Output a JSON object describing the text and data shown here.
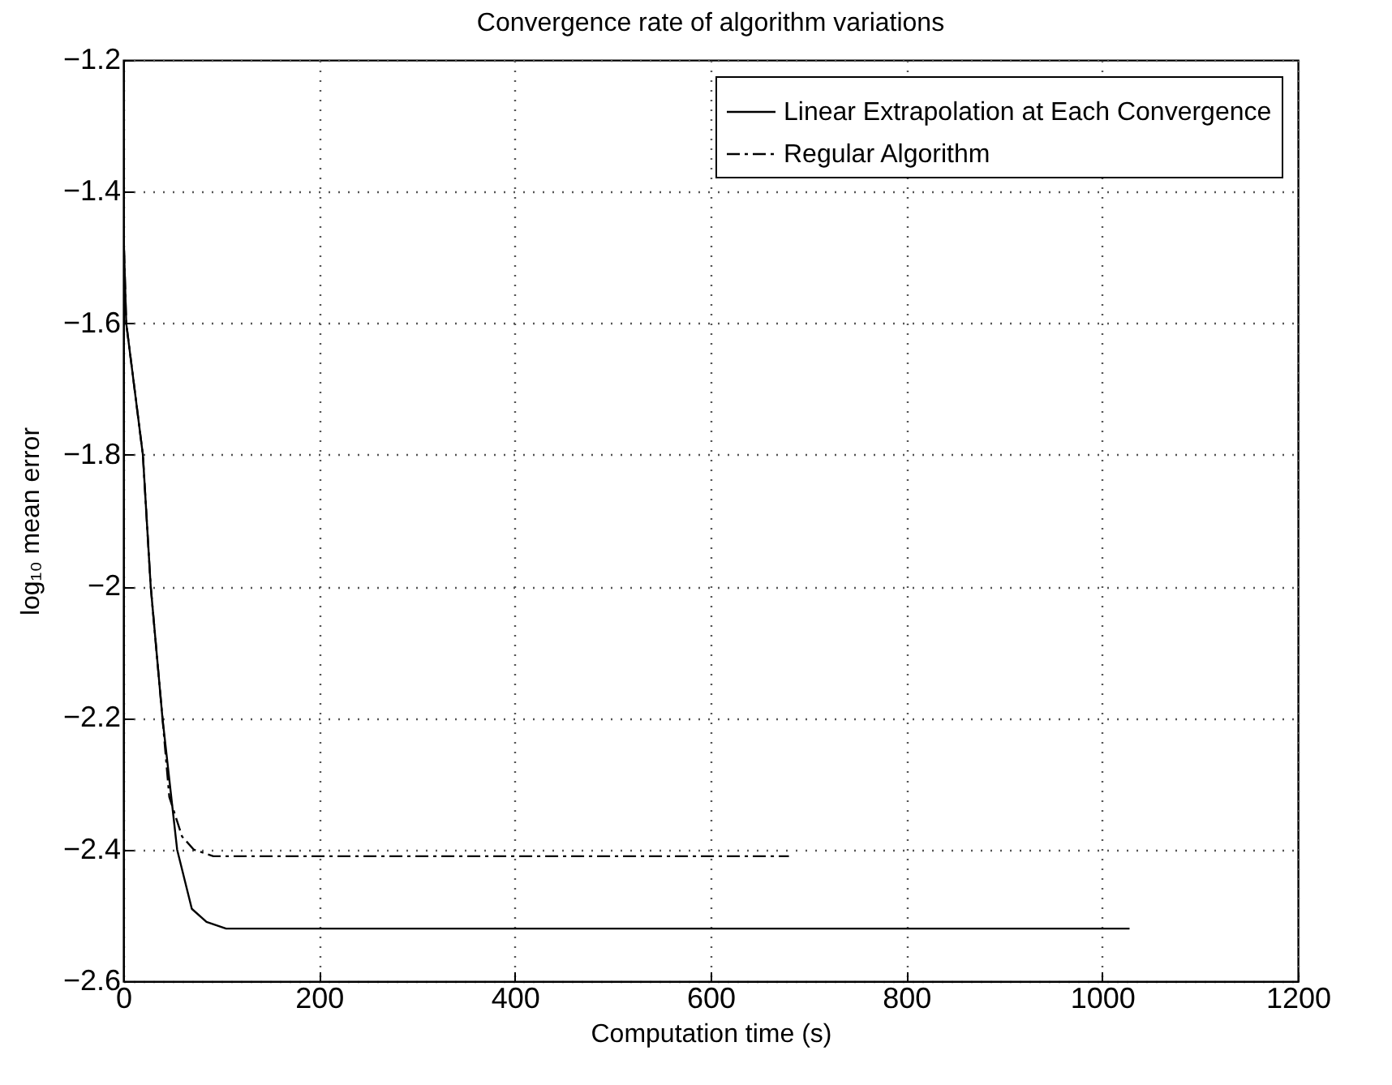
{
  "chart_data": {
    "type": "line",
    "title": "Convergence rate of algorithm variations",
    "xlabel": "Computation time (s)",
    "ylabel": "log₁₀ mean error",
    "xlim": [
      0,
      1200
    ],
    "xticks": [
      0,
      200,
      400,
      600,
      800,
      1000,
      1200
    ],
    "ylim": [
      -2.6,
      -1.2
    ],
    "yticks": [
      -2.6,
      -2.4,
      -2.2,
      -2,
      -1.8,
      -1.6,
      -1.4,
      -1.2
    ],
    "grid": true,
    "legend": "top right",
    "series": [
      {
        "name": "Linear Extrapolation at Each Convergence",
        "color": "#000000",
        "line_style": "solid",
        "x": [
          0,
          3,
          20,
          28,
          40,
          55,
          70,
          85,
          105,
          300,
          600,
          1028
        ],
        "values": [
          -1.45,
          -1.6,
          -1.8,
          -2.0,
          -2.2,
          -2.4,
          -2.49,
          -2.51,
          -2.52,
          -2.52,
          -2.52,
          -2.52
        ]
      },
      {
        "name": "Regular Algorithm",
        "color": "#000000",
        "line_style": "dashed",
        "x": [
          0,
          3,
          20,
          28,
          40,
          47,
          60,
          72,
          92,
          200,
          400,
          680
        ],
        "values": [
          -1.45,
          -1.6,
          -1.8,
          -2.0,
          -2.2,
          -2.32,
          -2.38,
          -2.4,
          -2.41,
          -2.41,
          -2.41,
          -2.41
        ]
      }
    ]
  }
}
